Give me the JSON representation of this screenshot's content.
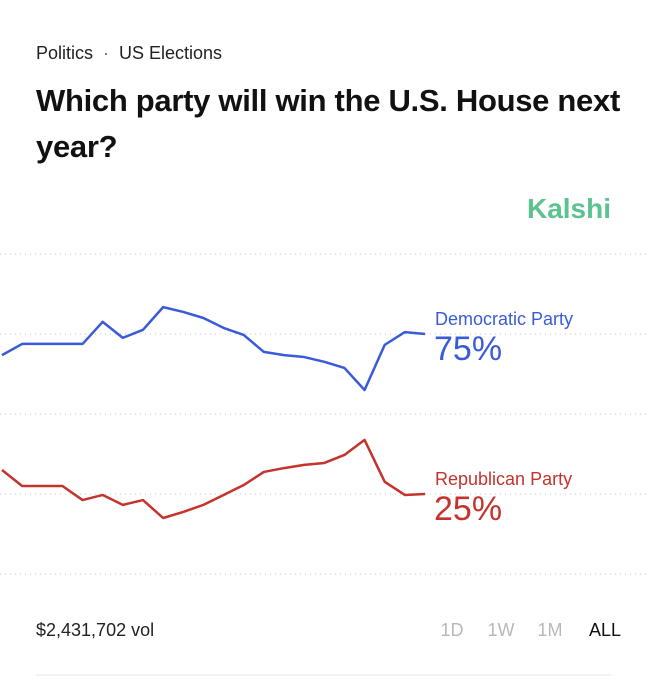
{
  "breadcrumb": [
    "Politics",
    "US Elections"
  ],
  "brand": "Kalshi",
  "volume": "$2,431,702 vol",
  "ranges": [
    "1D",
    "1W",
    "1M",
    "ALL"
  ],
  "active_range": "ALL",
  "chart_data": {
    "type": "line",
    "title": "Which party will win the U.S. House next year?",
    "ylim": [
      0,
      100
    ],
    "yticks": [
      0,
      25,
      50,
      75,
      100
    ],
    "grid": true,
    "series": [
      {
        "name": "Democratic Party",
        "color": "#3a5bd9",
        "values": [
          68.4,
          71.9,
          71.9,
          71.9,
          71.9,
          78.8,
          73.8,
          76.3,
          83.4,
          81.9,
          80,
          76.9,
          74.7,
          69.4,
          68.4,
          67.8,
          66.3,
          64.4,
          57.5,
          71.6,
          75.6,
          75
        ],
        "value_labels": [
          null,
          null,
          null,
          null,
          null,
          null,
          null,
          null,
          null,
          null,
          null,
          null,
          null,
          null,
          null,
          null,
          null,
          null,
          null,
          null,
          null,
          "75%"
        ]
      },
      {
        "name": "Republican Party",
        "color": "#c4332c",
        "values": [
          32.5,
          27.5,
          27.5,
          27.5,
          23.1,
          24.7,
          21.6,
          23.1,
          17.5,
          19.4,
          21.6,
          24.7,
          27.8,
          31.9,
          33.1,
          34.1,
          34.7,
          37.2,
          41.9,
          28.8,
          24.7,
          25
        ],
        "value_labels": [
          null,
          null,
          null,
          null,
          null,
          null,
          null,
          null,
          null,
          null,
          null,
          null,
          null,
          null,
          null,
          null,
          null,
          null,
          null,
          null,
          null,
          "25%"
        ]
      }
    ]
  }
}
